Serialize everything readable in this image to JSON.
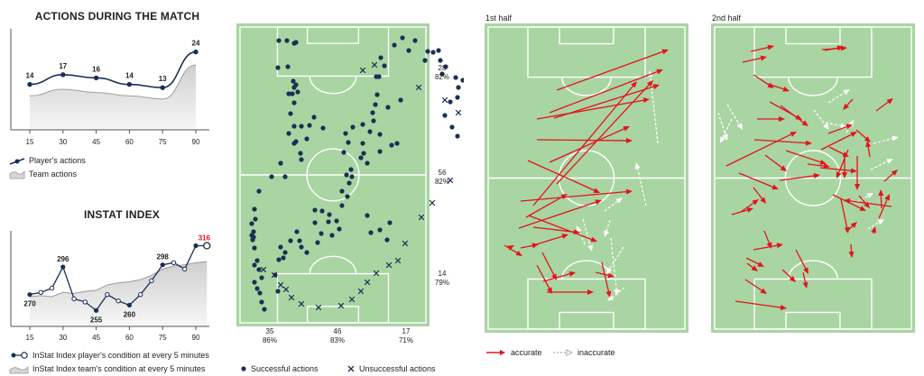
{
  "colors": {
    "pitch": "#a9d5a2",
    "pitch_line": "#ffffff",
    "accurate": "#e3131d",
    "inaccurate": "#ffffff",
    "player": "#1a2f55",
    "team_fill": "#d8d8d8",
    "highlight": "#e3131d"
  },
  "actions_panel": {
    "title": "ACTIONS DURING THE MATCH",
    "legend_player": "Player's actions",
    "legend_team": "Team actions"
  },
  "index_panel": {
    "title": "INSTAT INDEX",
    "legend_player": "InStat Index player's condition at every 5 minutes",
    "legend_team": "InStat Index team's condition at every 5 minutes"
  },
  "zones_panel": {
    "legend_success": "Successful actions",
    "legend_fail": "Unsuccessful actions"
  },
  "halves": {
    "first_label": "1st half",
    "second_label": "2nd half",
    "legend_accurate": "accurate",
    "legend_inaccurate": "inaccurate"
  },
  "chart_data": [
    {
      "type": "area",
      "title": "ACTIONS DURING THE MATCH",
      "x": [
        15,
        30,
        45,
        60,
        75,
        90
      ],
      "x_tick_labels": [
        "15",
        "30",
        "45",
        "60",
        "75",
        "90"
      ],
      "series": [
        {
          "name": "Player's actions",
          "values": [
            14,
            17,
            16,
            14,
            13,
            24
          ]
        },
        {
          "name": "Team actions",
          "values": [
            10.5,
            12.5,
            11.5,
            10.5,
            9.5,
            20
          ]
        }
      ],
      "ylim": [
        0,
        30
      ]
    },
    {
      "type": "line",
      "title": "INSTAT INDEX",
      "x": [
        15,
        20,
        25,
        30,
        35,
        40,
        45,
        50,
        55,
        60,
        65,
        70,
        75,
        80,
        85,
        90,
        95
      ],
      "x_tick_labels": [
        "15",
        "30",
        "45",
        "60",
        "75",
        "90"
      ],
      "series": [
        {
          "name": "InStat Index player's condition at every 5 minutes",
          "values": [
            270,
            272,
            276,
            296,
            266,
            263,
            255,
            270,
            264,
            260,
            270,
            283,
            298,
            300,
            294,
            316,
            316
          ]
        },
        {
          "name": "InStat Index team's condition at every 5 minutes",
          "values": [
            268,
            269,
            268,
            272,
            271,
            273,
            274,
            279,
            281,
            282,
            284,
            288,
            294,
            297,
            298,
            300,
            301
          ]
        }
      ],
      "labels": [
        {
          "x": 15,
          "value": "270"
        },
        {
          "x": 30,
          "value": "296"
        },
        {
          "x": 45,
          "value": "255"
        },
        {
          "x": 60,
          "value": "260"
        },
        {
          "x": 75,
          "value": "298"
        },
        {
          "x": 95,
          "value": "316"
        }
      ],
      "ylim": [
        240,
        330
      ]
    },
    {
      "type": "scatter",
      "zone_stats": {
        "right": [
          {
            "count": "28",
            "pct": "82%"
          },
          {
            "count": "56",
            "pct": "82%"
          },
          {
            "count": "14",
            "pct": "79%"
          }
        ],
        "bottom": [
          {
            "count": "35",
            "pct": "86%"
          },
          {
            "count": "46",
            "pct": "83%"
          },
          {
            "count": "17",
            "pct": "71%"
          }
        ]
      },
      "successful": [
        [
          39,
          3
        ],
        [
          48,
          3
        ],
        [
          58,
          5
        ],
        [
          38,
          33
        ],
        [
          56,
          6
        ],
        [
          49,
          32
        ],
        [
          55,
          48
        ],
        [
          56,
          55
        ],
        [
          58,
          52
        ],
        [
          50,
          62
        ],
        [
          54,
          62
        ],
        [
          60,
          60
        ],
        [
          56,
          72
        ],
        [
          52,
          84
        ],
        [
          56,
          98
        ],
        [
          56,
          117
        ],
        [
          64,
          98
        ],
        [
          50,
          106
        ],
        [
          58,
          115
        ],
        [
          63,
          128
        ],
        [
          70,
          112
        ],
        [
          73,
          97
        ],
        [
          78,
          88
        ],
        [
          88,
          100
        ],
        [
          64,
          135
        ],
        [
          41,
          139
        ],
        [
          46,
          154
        ],
        [
          31,
          154
        ],
        [
          17,
          170
        ],
        [
          12,
          190
        ],
        [
          13,
          201
        ],
        [
          9,
          206
        ],
        [
          11,
          215
        ],
        [
          11,
          221
        ],
        [
          9,
          219
        ],
        [
          10,
          224
        ],
        [
          12,
          233
        ],
        [
          12,
          252
        ],
        [
          17,
          257
        ],
        [
          15,
          247
        ],
        [
          20,
          266
        ],
        [
          12,
          271
        ],
        [
          15,
          278
        ],
        [
          18,
          283
        ],
        [
          20,
          293
        ],
        [
          23,
          301
        ],
        [
          38,
          281
        ],
        [
          35,
          263
        ],
        [
          39,
          246
        ],
        [
          44,
          244
        ],
        [
          46,
          238
        ],
        [
          41,
          232
        ],
        [
          52,
          225
        ],
        [
          59,
          215
        ],
        [
          62,
          225
        ],
        [
          64,
          232
        ],
        [
          70,
          238
        ],
        [
          82,
          227
        ],
        [
          86,
          217
        ],
        [
          98,
          219
        ],
        [
          106,
          212
        ],
        [
          103,
          203
        ],
        [
          94,
          204
        ],
        [
          87,
          192
        ],
        [
          79,
          191
        ],
        [
          79,
          205
        ],
        [
          95,
          196
        ],
        [
          109,
          186
        ],
        [
          115,
          176
        ],
        [
          109,
          170
        ],
        [
          117,
          161
        ],
        [
          114,
          152
        ],
        [
          120,
          154
        ],
        [
          119,
          146
        ],
        [
          130,
          133
        ],
        [
          137,
          139
        ],
        [
          133,
          128
        ],
        [
          132,
          117
        ],
        [
          140,
          104
        ],
        [
          144,
          92
        ],
        [
          164,
          119
        ],
        [
          151,
          107
        ],
        [
          151,
          126
        ],
        [
          170,
          117
        ],
        [
          160,
          77
        ],
        [
          174,
          69
        ],
        [
          141,
          216
        ],
        [
          151,
          213
        ],
        [
          162,
          205
        ],
        [
          159,
          224
        ],
        [
          137,
          197
        ],
        [
          111,
          127
        ],
        [
          116,
          116
        ],
        [
          113,
          106
        ],
        [
          121,
          99
        ],
        [
          132,
          96
        ],
        [
          143,
          83
        ],
        [
          146,
          74
        ],
        [
          148,
          63
        ],
        [
          147,
          43
        ],
        [
          150,
          43
        ],
        [
          156,
          31
        ],
        [
          152,
          22
        ],
        [
          167,
          8
        ],
        [
          176,
          0
        ],
        [
          183,
          14
        ],
        [
          190,
          3
        ],
        [
          204,
          15
        ],
        [
          210,
          16
        ],
        [
          201,
          25
        ],
        [
          216,
          14
        ],
        [
          218,
          25
        ],
        [
          224,
          32
        ],
        [
          220,
          40
        ],
        [
          235,
          44
        ],
        [
          243,
          47
        ],
        [
          238,
          55
        ],
        [
          237,
          66
        ],
        [
          229,
          71
        ],
        [
          223,
          86
        ],
        [
          231,
          99
        ],
        [
          237,
          109
        ],
        [
          249,
          121
        ],
        [
          263,
          137
        ],
        [
          256,
          154
        ],
        [
          264,
          161
        ],
        [
          269,
          177
        ],
        [
          279,
          205
        ],
        [
          283,
          220
        ],
        [
          291,
          230
        ]
      ],
      "unsuccessful": [
        [
          132,
          36
        ],
        [
          145,
          30
        ],
        [
          194,
          55
        ],
        [
          223,
          69
        ],
        [
          238,
          83
        ],
        [
          292,
          94
        ],
        [
          290,
          115
        ],
        [
          267,
          140
        ],
        [
          229,
          158
        ],
        [
          209,
          183
        ],
        [
          197,
          199
        ],
        [
          179,
          228
        ],
        [
          171,
          247
        ],
        [
          161,
          252
        ],
        [
          147,
          261
        ],
        [
          137,
          271
        ],
        [
          130,
          281
        ],
        [
          120,
          290
        ],
        [
          108,
          297
        ],
        [
          83,
          299
        ],
        [
          64,
          295
        ],
        [
          53,
          288
        ],
        [
          47,
          279
        ],
        [
          41,
          274
        ],
        [
          34,
          263
        ],
        [
          22,
          257
        ]
      ]
    },
    {
      "type": "scatter",
      "title": "1st half",
      "accurate": [
        [
          78,
          62,
          202,
          17
        ],
        [
          70,
          87,
          196,
          39
        ],
        [
          75,
          93,
          192,
          56
        ],
        [
          56,
          94,
          181,
          72
        ],
        [
          56,
          117,
          162,
          118
        ],
        [
          70,
          142,
          159,
          102
        ],
        [
          78,
          166,
          185,
          51
        ],
        [
          52,
          190,
          167,
          52
        ],
        [
          38,
          185,
          162,
          174
        ],
        [
          46,
          140,
          126,
          176
        ],
        [
          36,
          215,
          128,
          184
        ],
        [
          47,
          201,
          123,
          230
        ],
        [
          44,
          203,
          90,
          177
        ],
        [
          52,
          214,
          104,
          220
        ],
        [
          38,
          237,
          58,
          233
        ],
        [
          62,
          242,
          78,
          273
        ],
        [
          20,
          234,
          40,
          246
        ],
        [
          27,
          236,
          31,
          234
        ],
        [
          49,
          235,
          91,
          222
        ],
        [
          56,
          256,
          73,
          288
        ],
        [
          67,
          286,
          119,
          286
        ],
        [
          63,
          274,
          99,
          264
        ],
        [
          128,
          253,
          137,
          292
        ],
        [
          121,
          264,
          142,
          269
        ]
      ],
      "inaccurate": [
        [
          190,
          121,
          181,
          40
        ],
        [
          131,
          196,
          151,
          181
        ],
        [
          137,
          206,
          131,
          225
        ],
        [
          138,
          226,
          145,
          290
        ],
        [
          152,
          236,
          133,
          266
        ],
        [
          153,
          281,
          134,
          296
        ],
        [
          177,
          190,
          166,
          142
        ],
        [
          107,
          205,
          117,
          241
        ],
        [
          109,
          233,
          100,
          212
        ]
      ]
    },
    {
      "type": "scatter",
      "title": "2nd half",
      "accurate": [
        [
          42,
          19,
          68,
          13
        ],
        [
          124,
          18,
          145,
          14
        ],
        [
          121,
          17,
          149,
          15
        ],
        [
          33,
          31,
          60,
          25
        ],
        [
          45,
          45,
          68,
          60
        ],
        [
          61,
          55,
          85,
          63
        ],
        [
          63,
          75,
          99,
          95
        ],
        [
          75,
          79,
          106,
          102
        ],
        [
          49,
          94,
          80,
          94
        ],
        [
          46,
          117,
          110,
          121
        ],
        [
          58,
          134,
          82,
          152
        ],
        [
          15,
          146,
          93,
          108
        ],
        [
          29,
          154,
          73,
          172
        ],
        [
          45,
          170,
          59,
          188
        ],
        [
          74,
          162,
          119,
          156
        ],
        [
          81,
          129,
          126,
          144
        ],
        [
          105,
          144,
          130,
          147
        ],
        [
          119,
          148,
          160,
          152
        ],
        [
          120,
          128,
          160,
          108
        ],
        [
          128,
          110,
          155,
          100
        ],
        [
          129,
          125,
          151,
          136
        ],
        [
          150,
          128,
          137,
          160
        ],
        [
          146,
          134,
          146,
          160
        ],
        [
          160,
          135,
          160,
          173
        ],
        [
          181,
          85,
          200,
          71
        ],
        [
          155,
          72,
          144,
          84
        ],
        [
          159,
          106,
          175,
          120
        ],
        [
          174,
          136,
          171,
          118
        ],
        [
          198,
          191,
          145,
          184
        ],
        [
          187,
          193,
          186,
          172
        ],
        [
          184,
          204,
          196,
          177
        ],
        [
          133,
          178,
          170,
          196
        ],
        [
          142,
          183,
          150,
          221
        ],
        [
          162,
          179,
          174,
          193
        ],
        [
          190,
          163,
          205,
          150
        ],
        [
          178,
          221,
          180,
          213
        ],
        [
          92,
          239,
          106,
          266
        ],
        [
          45,
          239,
          78,
          233
        ],
        [
          37,
          248,
          57,
          258
        ],
        [
          38,
          254,
          50,
          263
        ],
        [
          77,
          261,
          92,
          275
        ],
        [
          36,
          272,
          60,
          288
        ],
        [
          25,
          296,
          82,
          304
        ],
        [
          100,
          264,
          104,
          282
        ],
        [
          57,
          218,
          65,
          238
        ],
        [
          21,
          200,
          45,
          193
        ],
        [
          31,
          197,
          51,
          183
        ],
        [
          148,
          219,
          160,
          208
        ],
        [
          153,
          233,
          154,
          248
        ]
      ],
      "inaccurate": [
        [
          16,
          78,
          33,
          106
        ],
        [
          6,
          87,
          16,
          118
        ],
        [
          21,
          94,
          8,
          121
        ],
        [
          112,
          84,
          129,
          106
        ],
        [
          128,
          76,
          152,
          61
        ],
        [
          125,
          98,
          149,
          103
        ],
        [
          148,
          109,
          156,
          95
        ],
        [
          178,
          121,
          206,
          114
        ],
        [
          175,
          150,
          200,
          138
        ],
        [
          160,
          186,
          178,
          176
        ],
        [
          172,
          216,
          190,
          205
        ]
      ]
    }
  ]
}
